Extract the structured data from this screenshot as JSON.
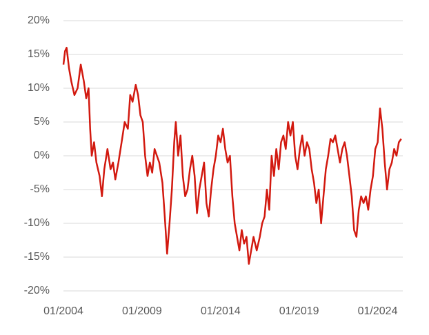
{
  "chart_data": {
    "type": "line",
    "x": [
      2004.0,
      2004.1,
      2004.2,
      2004.35,
      2004.5,
      2004.7,
      2004.9,
      2005.1,
      2005.3,
      2005.45,
      2005.6,
      2005.7,
      2005.8,
      2005.95,
      2006.1,
      2006.3,
      2006.45,
      2006.6,
      2006.8,
      2007.0,
      2007.15,
      2007.3,
      2007.5,
      2007.7,
      2007.9,
      2008.1,
      2008.25,
      2008.4,
      2008.6,
      2008.75,
      2008.9,
      2009.05,
      2009.2,
      2009.35,
      2009.5,
      2009.65,
      2009.8,
      2009.95,
      2010.1,
      2010.3,
      2010.45,
      2010.6,
      2010.75,
      2010.9,
      2011.05,
      2011.15,
      2011.3,
      2011.45,
      2011.6,
      2011.75,
      2011.9,
      2012.05,
      2012.2,
      2012.35,
      2012.5,
      2012.65,
      2012.8,
      2012.95,
      2013.1,
      2013.25,
      2013.4,
      2013.55,
      2013.7,
      2013.85,
      2014.0,
      2014.15,
      2014.3,
      2014.45,
      2014.6,
      2014.75,
      2014.9,
      2015.05,
      2015.2,
      2015.35,
      2015.5,
      2015.65,
      2015.8,
      2015.95,
      2016.1,
      2016.3,
      2016.5,
      2016.65,
      2016.8,
      2016.95,
      2017.1,
      2017.25,
      2017.4,
      2017.55,
      2017.7,
      2017.85,
      2018.0,
      2018.15,
      2018.3,
      2018.45,
      2018.6,
      2018.75,
      2018.9,
      2019.05,
      2019.2,
      2019.35,
      2019.5,
      2019.65,
      2019.8,
      2019.95,
      2020.1,
      2020.25,
      2020.4,
      2020.55,
      2020.7,
      2020.85,
      2021.0,
      2021.15,
      2021.3,
      2021.45,
      2021.6,
      2021.75,
      2021.9,
      2022.05,
      2022.2,
      2022.35,
      2022.5,
      2022.65,
      2022.8,
      2022.95,
      2023.1,
      2023.25,
      2023.4,
      2023.55,
      2023.7,
      2023.85,
      2024.0,
      2024.15,
      2024.3,
      2024.45,
      2024.6,
      2024.75,
      2024.9,
      2025.05,
      2025.2,
      2025.35,
      2025.5
    ],
    "series": [
      {
        "color": "#d2190f",
        "values": [
          13.5,
          15.5,
          16,
          13,
          11,
          9,
          10,
          13.5,
          11,
          8.5,
          10,
          4,
          0,
          2,
          -1,
          -3,
          -6,
          -2,
          1,
          -2,
          -1,
          -3.5,
          -1,
          2,
          5,
          4,
          9,
          8,
          10.5,
          9,
          6,
          5,
          0,
          -3,
          -1,
          -2.5,
          1,
          0,
          -1,
          -4,
          -9,
          -14.5,
          -10,
          -5,
          2,
          5,
          0,
          3,
          -3,
          -6,
          -5,
          -2,
          0,
          -3,
          -8.5,
          -5,
          -3,
          -1,
          -7,
          -9,
          -5,
          -2,
          0,
          3,
          2,
          4,
          1,
          -1,
          0,
          -6,
          -10,
          -12,
          -14,
          -11,
          -13,
          -12,
          -16,
          -14,
          -12,
          -14,
          -12,
          -10,
          -9,
          -5,
          -8,
          0,
          -3,
          1,
          -2,
          2,
          3,
          1,
          5,
          3,
          5,
          0,
          -2,
          1,
          3,
          0,
          2,
          1,
          -2,
          -4,
          -7,
          -5,
          -10,
          -6,
          -2,
          0,
          2.5,
          2,
          3,
          1,
          -1,
          1,
          2,
          0,
          -3,
          -6,
          -11,
          -12,
          -8,
          -6,
          -7,
          -6,
          -8,
          -5,
          -3,
          1,
          2,
          7,
          4,
          -1,
          -5,
          -2,
          -1,
          1,
          0,
          2,
          2.5
        ]
      }
    ],
    "xlim": [
      2004,
      2025.6
    ],
    "xticks": [
      {
        "value": 2004,
        "label": "01/2004"
      },
      {
        "value": 2009,
        "label": "01/2009"
      },
      {
        "value": 2014,
        "label": "01/2014"
      },
      {
        "value": 2019,
        "label": "01/2019"
      },
      {
        "value": 2024,
        "label": "01/2024"
      }
    ],
    "ylim": [
      -20,
      20
    ],
    "yticks": [
      {
        "value": -20,
        "label": "-20%"
      },
      {
        "value": -15,
        "label": "-15%"
      },
      {
        "value": -10,
        "label": "-10%"
      },
      {
        "value": -5,
        "label": "-5%"
      },
      {
        "value": 0,
        "label": "0%"
      },
      {
        "value": 5,
        "label": "5%"
      },
      {
        "value": 10,
        "label": "10%"
      },
      {
        "value": 15,
        "label": "15%"
      },
      {
        "value": 20,
        "label": "20%"
      }
    ],
    "grid": true
  }
}
